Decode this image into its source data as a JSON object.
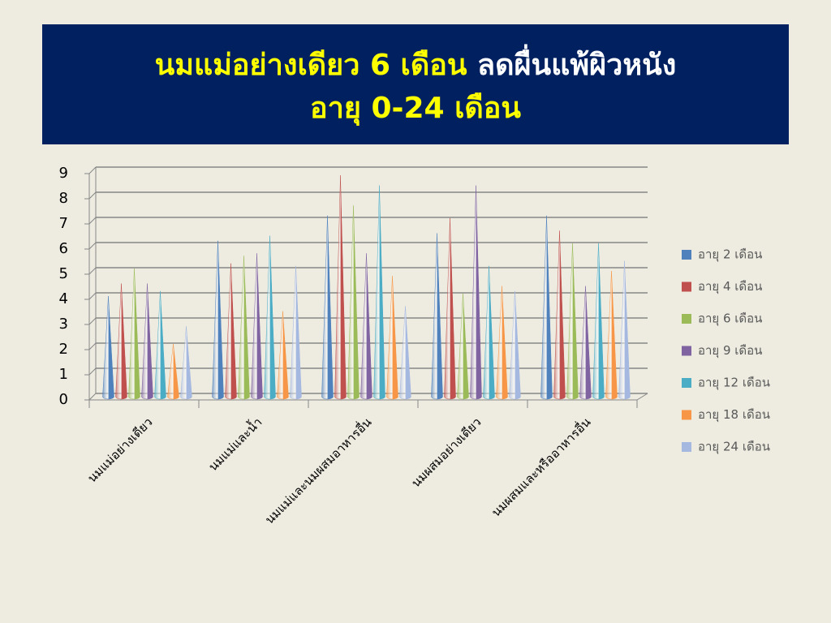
{
  "chart_data": {
    "type": "cone",
    "title": [
      "นมแม่อย่างเดียว 6 เดือน",
      "ลดผื่นแพ้ผิวหนัง",
      "อายุ 0-24 เดือน"
    ],
    "categories": [
      "นมแม่อย่างเดียว",
      "นมแม่และน้ำ",
      "นมแม่และนมผสมอาหารอื่น",
      "นมผสมอย่างเดียว",
      "นมผสมและหรืออาหารอื่น"
    ],
    "series": [
      {
        "name": "อายุ 2 เดือน",
        "color": "#4f81bd",
        "values": [
          4.0,
          6.2,
          7.2,
          6.5,
          7.2
        ]
      },
      {
        "name": "อายุ 4 เดือน",
        "color": "#c0504d",
        "values": [
          4.5,
          5.3,
          8.8,
          7.1,
          6.6
        ]
      },
      {
        "name": "อายุ 6 เดือน",
        "color": "#9bbb59",
        "values": [
          5.1,
          5.6,
          7.6,
          4.1,
          6.1
        ]
      },
      {
        "name": "อายุ 9 เดือน",
        "color": "#8064a2",
        "values": [
          4.5,
          5.7,
          5.7,
          8.4,
          4.4
        ]
      },
      {
        "name": "อายุ 12 เดือน",
        "color": "#4bacc6",
        "values": [
          4.2,
          6.4,
          8.4,
          5.2,
          6.1
        ]
      },
      {
        "name": "อายุ 18 เดือน",
        "color": "#f79646",
        "values": [
          2.1,
          3.4,
          4.8,
          4.4,
          5.0
        ]
      },
      {
        "name": "อายุ 24 เดือน",
        "color": "#a5b8e0",
        "values": [
          2.8,
          5.2,
          3.6,
          4.2,
          5.4
        ]
      }
    ],
    "ylim": [
      0,
      9
    ],
    "yticks": [
      0,
      1,
      2,
      3,
      4,
      5,
      6,
      7,
      8,
      9
    ],
    "grid": true,
    "legend": "right"
  }
}
